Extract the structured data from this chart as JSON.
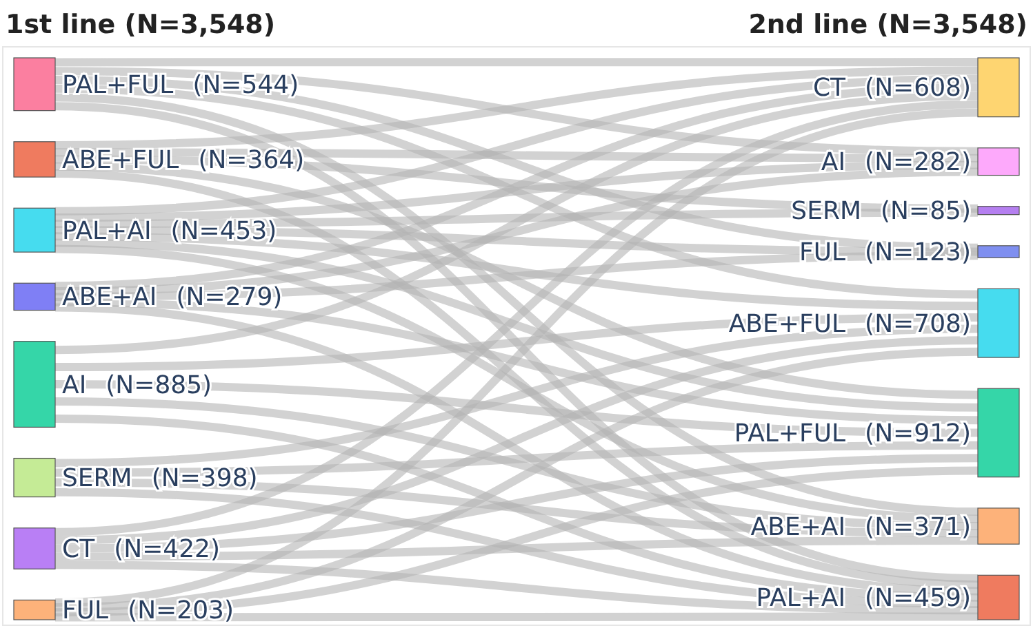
{
  "chart_data": [
    {
      "type": "other",
      "title": "1st line (N=3,548)",
      "categories": [
        "PAL+FUL",
        "ABE+FUL",
        "PAL+AI",
        "ABE+AI",
        "AI",
        "SERM",
        "CT",
        "FUL"
      ],
      "values": [
        544,
        364,
        453,
        279,
        885,
        398,
        422,
        203
      ],
      "value_labels": [
        "(N=544)",
        "(N=364)",
        "(N=453)",
        "(N=279)",
        "(N=885)",
        "(N=398)",
        "(N=422)",
        "(N=203)"
      ],
      "colors": [
        "#fb7fa0",
        "#ef7b5f",
        "#46dcef",
        "#7f7ff5",
        "#35d6a8",
        "#c5eb96",
        "#b97ff5",
        "#fdb27a"
      ]
    },
    {
      "type": "other",
      "title": "2nd line (N=3,548)",
      "categories": [
        "CT",
        "AI",
        "SERM",
        "FUL",
        "ABE+FUL",
        "PAL+FUL",
        "ABE+AI",
        "PAL+AI"
      ],
      "values": [
        608,
        282,
        85,
        123,
        708,
        912,
        371,
        459
      ],
      "value_labels": [
        "(N=608)",
        "(N=282)",
        "(N=85)",
        "(N=123)",
        "(N=708)",
        "(N=912)",
        "(N=371)",
        "(N=459)"
      ],
      "colors": [
        "#fed571",
        "#fda9fb",
        "#b57ff0",
        "#7f8ff0",
        "#46dcef",
        "#35d6a8",
        "#fdb27a",
        "#ef7b5f"
      ]
    }
  ]
}
